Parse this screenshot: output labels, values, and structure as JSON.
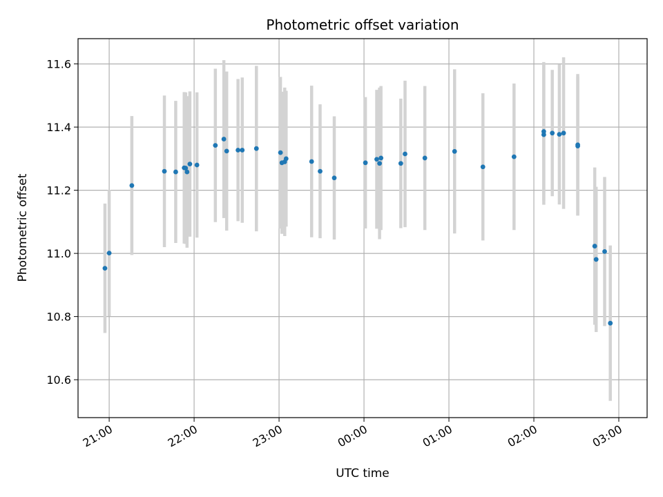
{
  "chart_data": {
    "type": "scatter",
    "title": "Photometric offset variation",
    "xlabel": "UTC time",
    "ylabel": "Photometric offset",
    "xlim": [
      "20:38",
      "03:20"
    ],
    "ylim": [
      10.48,
      11.68
    ],
    "x_ticks": [
      "21:00",
      "22:00",
      "23:00",
      "00:00",
      "01:00",
      "02:00",
      "03:00"
    ],
    "y_ticks": [
      "10.6",
      "10.8",
      "11.0",
      "11.2",
      "11.4",
      "11.6"
    ],
    "y_tick_values": [
      10.6,
      10.8,
      11.0,
      11.2,
      11.4,
      11.6
    ],
    "grid": true,
    "colors": {
      "points": "#1f77b4",
      "errorbars": "#d3d3d3",
      "grid": "#b0b0b0"
    },
    "series": [
      {
        "x": [
          "20:57",
          "21:00",
          "21:16",
          "21:39",
          "21:47",
          "21:53",
          "21:54",
          "21:55",
          "21:57",
          "22:02",
          "22:15",
          "22:21",
          "22:23",
          "22:31",
          "22:34",
          "22:44",
          "23:01",
          "23:02",
          "23:04",
          "23:05",
          "23:23",
          "23:29",
          "23:39",
          "00:01",
          "00:09",
          "00:11",
          "00:12",
          "00:26",
          "00:29",
          "00:43",
          "01:04",
          "01:24",
          "01:46",
          "02:07",
          "02:07",
          "02:13",
          "02:18",
          "02:21",
          "02:31",
          "02:31",
          "02:43",
          "02:44",
          "02:50",
          "02:54"
        ],
        "y": [
          10.953,
          11.001,
          11.215,
          11.26,
          11.258,
          11.271,
          11.27,
          11.258,
          11.283,
          11.28,
          11.342,
          11.362,
          11.324,
          11.327,
          11.327,
          11.332,
          11.319,
          11.287,
          11.29,
          11.3,
          11.291,
          11.26,
          11.239,
          11.287,
          11.298,
          11.285,
          11.302,
          11.285,
          11.315,
          11.302,
          11.323,
          11.274,
          11.306,
          11.376,
          11.386,
          11.381,
          11.377,
          11.381,
          11.344,
          11.34,
          11.023,
          10.981,
          11.006,
          10.779
        ],
        "yerr": [
          0.205,
          0.2,
          0.22,
          0.24,
          0.225,
          0.24,
          0.24,
          0.24,
          0.23,
          0.23,
          0.243,
          0.25,
          0.252,
          0.225,
          0.23,
          0.262,
          0.24,
          0.225,
          0.235,
          0.215,
          0.24,
          0.212,
          0.195,
          0.208,
          0.22,
          0.24,
          0.228,
          0.205,
          0.232,
          0.228,
          0.26,
          0.233,
          0.232,
          0.222,
          0.22,
          0.2,
          0.222,
          0.24,
          0.224,
          0.22,
          0.249,
          0.23,
          0.236,
          0.246
        ]
      }
    ]
  }
}
